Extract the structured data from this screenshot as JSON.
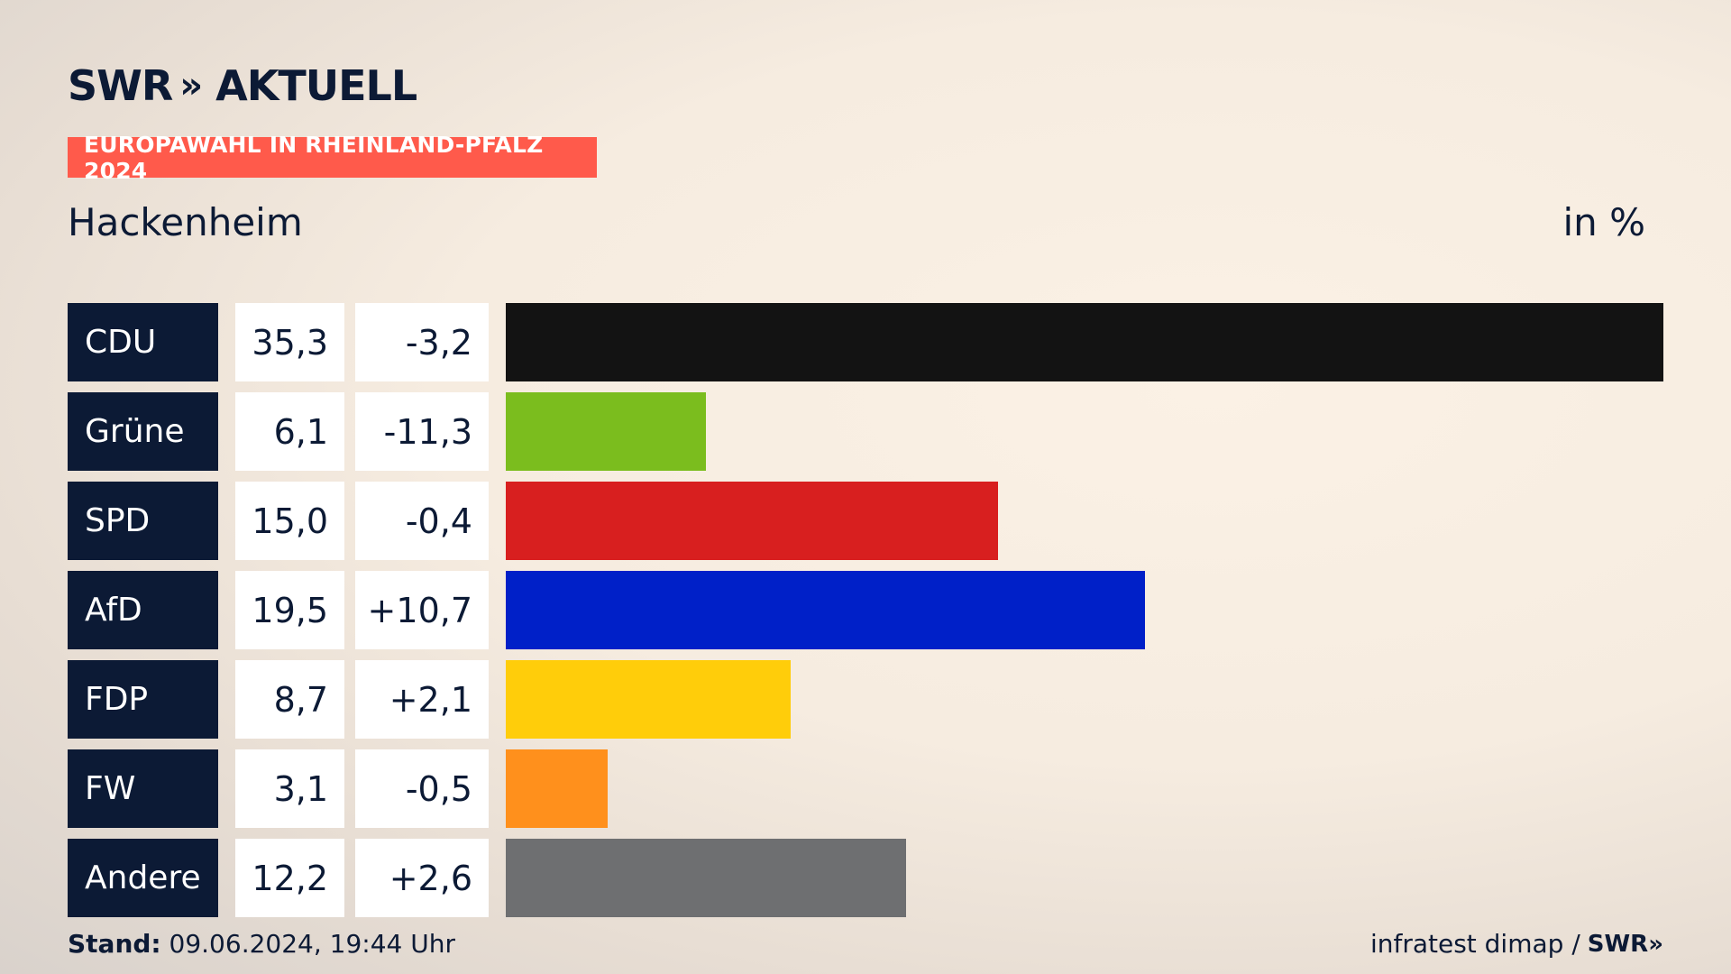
{
  "header": {
    "brand": "SWR",
    "brand_chevron": "»",
    "brand_section": "AKTUELL",
    "tag": "EUROPAWAHL IN RHEINLAND-PFALZ 2024",
    "place": "Hackenheim",
    "unit": "in %"
  },
  "footer": {
    "stand_label": "Stand:",
    "stand_value": "09.06.2024, 19:44 Uhr",
    "source": "infratest dimap /",
    "source_brand": "SWR»"
  },
  "chart_data": {
    "type": "bar",
    "orientation": "horizontal",
    "title": "Hackenheim",
    "unit": "in %",
    "max_value": 35.3,
    "categories": [
      "CDU",
      "Grüne",
      "SPD",
      "AfD",
      "FDP",
      "FW",
      "Andere"
    ],
    "values": [
      35.3,
      6.1,
      15.0,
      19.5,
      8.7,
      3.1,
      12.2
    ],
    "value_labels": [
      "35,3",
      "6,1",
      "15,0",
      "19,5",
      "8,7",
      "3,1",
      "12,2"
    ],
    "diff_labels": [
      "-3,2",
      "-11,3",
      "-0,4",
      "+10,7",
      "+2,1",
      "-0,5",
      "+2,6"
    ],
    "colors": [
      "#131313",
      "#7bbd1e",
      "#d81f1f",
      "#0020c8",
      "#ffcd0a",
      "#ff901c",
      "#6e6f71"
    ]
  }
}
